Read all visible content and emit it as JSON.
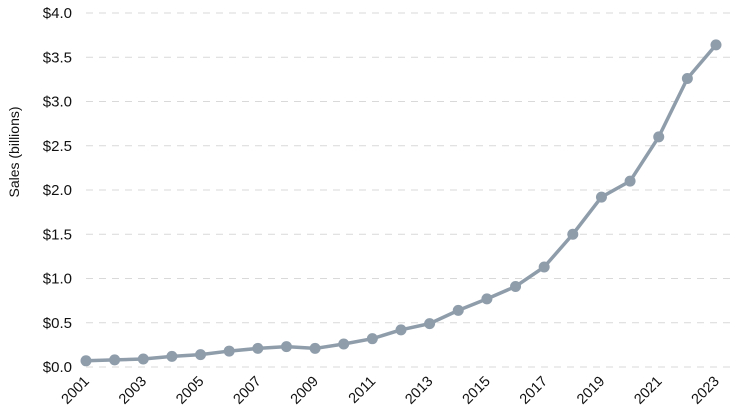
{
  "chart_data": {
    "type": "line",
    "title": "",
    "xlabel": "",
    "ylabel": "Sales (billions)",
    "ylim": [
      0,
      4
    ],
    "y_ticks": [
      {
        "value": 0.0,
        "label": "$0.0"
      },
      {
        "value": 0.5,
        "label": "$0.5"
      },
      {
        "value": 1.0,
        "label": "$1.0"
      },
      {
        "value": 1.5,
        "label": "$1.5"
      },
      {
        "value": 2.0,
        "label": "$2.0"
      },
      {
        "value": 2.5,
        "label": "$2.5"
      },
      {
        "value": 3.0,
        "label": "$3.0"
      },
      {
        "value": 3.5,
        "label": "$3.5"
      },
      {
        "value": 4.0,
        "label": "$4.0"
      }
    ],
    "x_tick_labels": [
      "2001",
      "2003",
      "2005",
      "2007",
      "2009",
      "2011",
      "2013",
      "2015",
      "2017",
      "2019",
      "2021",
      "2023"
    ],
    "grid": true,
    "legend": "none",
    "series": [
      {
        "color": "#8f9dab",
        "x": [
          2001,
          2002,
          2003,
          2004,
          2005,
          2006,
          2007,
          2008,
          2009,
          2010,
          2011,
          2012,
          2013,
          2014,
          2015,
          2016,
          2017,
          2018,
          2019,
          2020,
          2021,
          2022,
          2023
        ],
        "values": [
          0.07,
          0.08,
          0.09,
          0.12,
          0.14,
          0.18,
          0.21,
          0.23,
          0.21,
          0.26,
          0.32,
          0.42,
          0.49,
          0.64,
          0.77,
          0.91,
          1.13,
          1.5,
          1.92,
          2.1,
          2.6,
          3.26,
          3.64
        ]
      }
    ]
  }
}
